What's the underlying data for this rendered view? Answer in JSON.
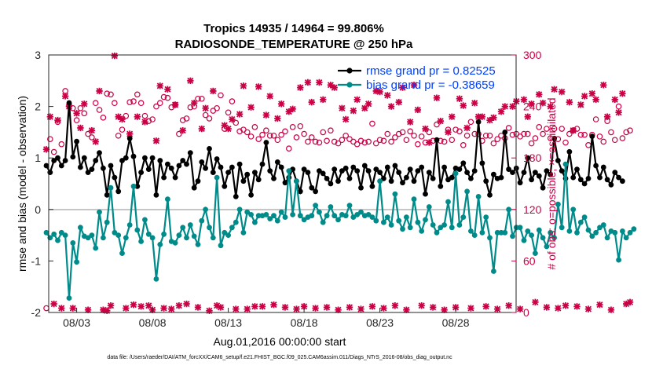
{
  "chart_data": {
    "type": "line",
    "title": "Tropics 14935 / 14964 = 99.806%",
    "subtitle": "RADIOSONDE_TEMPERATURE @ 250 hPa",
    "xlabel": "Aug.01,2016 00:00:00 start",
    "ylabel": "rmse and bias (model - observation)",
    "ylabel_right": "# of obs: o=possible; ×=assimilated",
    "footer": "data file: /Users/raeder/DAI/ATM_forcXX/CAM6_setup/f.e21.FHIST_BGC.f09_025.CAM6assim.011/Diags_NTrS_2016-08/obs_diag_output.nc",
    "x_range": [
      1,
      32
    ],
    "ylim": [
      -2,
      3
    ],
    "ylim_right": [
      0,
      300
    ],
    "yticks": [
      "-2",
      "-1",
      "0",
      "1",
      "2",
      "3"
    ],
    "yticks_right": [
      "0",
      "60",
      "120",
      "180",
      "240",
      "300"
    ],
    "xticks": [
      {
        "x": 3,
        "label": "08/03"
      },
      {
        "x": 8,
        "label": "08/08"
      },
      {
        "x": 13,
        "label": "08/13"
      },
      {
        "x": 18,
        "label": "08/18"
      },
      {
        "x": 23,
        "label": "08/23"
      },
      {
        "x": 28,
        "label": "08/28"
      }
    ],
    "x_step": 0.25,
    "series": [
      {
        "name": "rmse",
        "legend": "rmse grand pr = 0.82525",
        "color": "#000000",
        "axis": "left",
        "values": [
          0.85,
          0.72,
          0.95,
          1.0,
          0.85,
          0.95,
          2.07,
          1.02,
          1.32,
          0.82,
          1.0,
          0.72,
          0.78,
          0.95,
          1.1,
          0.8,
          0.28,
          0.85,
          0.62,
          0.35,
          0.95,
          1.0,
          1.38,
          1.03,
          0.45,
          0.72,
          1.0,
          0.78,
          1.0,
          0.28,
          0.95,
          0.62,
          0.88,
          0.8,
          0.62,
          0.85,
          0.95,
          0.88,
          1.1,
          0.42,
          0.55,
          0.92,
          0.8,
          1.18,
          0.72,
          0.98,
          0.82,
          0.45,
          0.72,
          0.82,
          0.25,
          0.88,
          0.55,
          0.68,
          0.28,
          0.72,
          0.58,
          0.88,
          1.3,
          0.75,
          0.6,
          0.92,
          0.82,
          0.52,
          0.62,
          0.78,
          0.55,
          0.35,
          0.78,
          0.72,
          0.42,
          0.35,
          0.75,
          0.7,
          0.6,
          0.5,
          0.78,
          0.55,
          0.75,
          0.8,
          0.6,
          0.82,
          0.75,
          0.42,
          0.85,
          0.75,
          0.45,
          0.78,
          0.72,
          0.6,
          0.82,
          0.55,
          0.85,
          0.72,
          0.52,
          0.62,
          0.78,
          0.55,
          0.75,
          0.82,
          0.3,
          0.72,
          0.6,
          1.35,
          0.45,
          0.82,
          0.58,
          0.62,
          0.8,
          0.78,
          0.9,
          0.72,
          0.6,
          0.75,
          1.7,
          0.9,
          0.55,
          0.28,
          0.68,
          0.6,
          0.62,
          1.5,
          0.78,
          0.72,
          0.8,
          0.52,
          0.72,
          1.0,
          0.58,
          0.72,
          0.65,
          0.42,
          0.75,
          0.68,
          1.38,
          0.95,
          0.75,
          0.6,
          1.12,
          0.62,
          0.78,
          0.58,
          0.5,
          0.6,
          1.42,
          0.85,
          0.62,
          0.82,
          0.58,
          0.48,
          0.72,
          0.62,
          0.55
        ]
      },
      {
        "name": "bias",
        "legend": "bias grand pr = -0.38659",
        "color": "#008b8b",
        "axis": "left",
        "values": [
          -0.45,
          -0.55,
          -0.48,
          -0.6,
          -0.45,
          -0.5,
          -1.72,
          -0.65,
          -1.02,
          -0.35,
          -0.52,
          -0.55,
          -0.5,
          -0.75,
          -0.05,
          -0.55,
          -0.25,
          0.42,
          -0.45,
          -0.5,
          -0.85,
          -0.55,
          -0.3,
          0.45,
          -0.4,
          -0.62,
          -0.2,
          -0.48,
          -0.55,
          -1.35,
          -0.68,
          -0.48,
          0.2,
          -0.62,
          -0.65,
          -0.5,
          -0.35,
          -0.55,
          -0.3,
          -0.52,
          -0.68,
          -0.22,
          0.0,
          -0.35,
          -0.55,
          0.62,
          -0.7,
          -0.45,
          -0.5,
          -0.35,
          -0.25,
          0.0,
          -0.45,
          -0.05,
          -0.1,
          -0.25,
          -0.12,
          -0.12,
          -0.1,
          -0.18,
          -0.12,
          -0.22,
          -0.05,
          -0.15,
          0.75,
          -0.1,
          0.55,
          -0.12,
          -0.2,
          -0.15,
          -0.12,
          0.08,
          -0.05,
          -0.25,
          -0.12,
          0.05,
          -0.12,
          -0.2,
          -0.1,
          -0.12,
          0.08,
          -0.15,
          -0.1,
          -0.05,
          -0.12,
          -0.1,
          -0.15,
          -0.22,
          0.55,
          -0.25,
          -0.15,
          -0.3,
          0.3,
          -0.22,
          -0.38,
          -0.15,
          -0.35,
          0.2,
          -0.25,
          -0.42,
          -0.2,
          0.05,
          -0.3,
          -0.45,
          -0.35,
          -0.3,
          0.15,
          -0.35,
          0.7,
          -0.3,
          -0.15,
          0.35,
          -0.42,
          -0.5,
          0.25,
          -0.45,
          -0.15,
          -0.55,
          -1.2,
          -0.45,
          -0.45,
          -0.45,
          0.0,
          -0.52,
          -0.35,
          -0.35,
          -0.6,
          -0.42,
          -0.5,
          -0.85,
          -0.4,
          -0.55,
          -0.72,
          -0.45,
          -0.55,
          0.1,
          -0.35,
          0.88,
          -0.42,
          0.0,
          -0.45,
          -0.25,
          -0.15,
          -0.4,
          -0.52,
          -0.45,
          -0.35,
          -0.3,
          -0.55,
          -0.42,
          -0.45,
          -0.98,
          -0.42,
          -0.55,
          -0.45,
          -0.38
        ]
      },
      {
        "name": "possible",
        "legend": "",
        "color": "#cc0044",
        "axis": "right",
        "marker": "o",
        "values": [
          5,
          202,
          187,
          222,
          196,
          258,
          241,
          238,
          224,
          238,
          232,
          208,
          204,
          244,
          236,
          227,
          255,
          254,
          244,
          206,
          213,
          229,
          245,
          246,
          254,
          244,
          229,
          223,
          225,
          240,
          244,
          251,
          250,
          239,
          242,
          208,
          224,
          226,
          239,
          240,
          249,
          249,
          230,
          226,
          235,
          238,
          253,
          214,
          233,
          246,
          221,
          211,
          213,
          210,
          205,
          216,
          202,
          207,
          212,
          206,
          206,
          201,
          207,
          211,
          191,
          216,
          204,
          217,
          208,
          199,
          204,
          199,
          198,
          210,
          200,
          212,
          199,
          197,
          201,
          206,
          202,
          199,
          196,
          200,
          198,
          199,
          220,
          197,
          201,
          200,
          208,
          199,
          204,
          208,
          210,
          201,
          211,
          206,
          196,
          205,
          198,
          210,
          200,
          219,
          200,
          199,
          213,
          201,
          213,
          211,
          195,
          206,
          222,
          208,
          208,
          200,
          206,
          206,
          197,
          202,
          206,
          203,
          215,
          207,
          208,
          205,
          208,
          208,
          197,
          203,
          216,
          208,
          214,
          203,
          214,
          202,
          214,
          198,
          208,
          212,
          214,
          207,
          207,
          195,
          207,
          225,
          205,
          199,
          223,
          210,
          201,
          240,
          203,
          210,
          212
        ]
      },
      {
        "name": "assimilated",
        "legend": "",
        "color": "#cc0044",
        "axis": "right",
        "marker": "x",
        "values": [
          190,
          228,
          10,
          224,
          5,
          252,
          240,
          5,
          232,
          215,
          243,
          3,
          212,
          199,
          258,
          3,
          2,
          8,
          299,
          228,
          225,
          5,
          208,
          9,
          228,
          7,
          222,
          8,
          3,
          200,
          264,
          5,
          260,
          4,
          242,
          8,
          212,
          10,
          270,
          244,
          6,
          214,
          238,
          2,
          258,
          8,
          6,
          218,
          214,
          225,
          4,
          231,
          264,
          4,
          239,
          7,
          263,
          7,
          230,
          252,
          9,
          226,
          243,
          6,
          234,
          237,
          4,
          262,
          7,
          268,
          245,
          5,
          268,
          248,
          6,
          265,
          262,
          3,
          238,
          225,
          6,
          235,
          248,
          4,
          238,
          243,
          7,
          258,
          257,
          5,
          253,
          240,
          8,
          245,
          262,
          3,
          222,
          265,
          236,
          8,
          214,
          198,
          6,
          250,
          223,
          3,
          210,
          228,
          6,
          249,
          241,
          215,
          5,
          244,
          228,
          228,
          7,
          224,
          227,
          4,
          234,
          240,
          8,
          240,
          246,
          4,
          248,
          228,
          243,
          12,
          254,
          244,
          6,
          240,
          260,
          5,
          257,
          8,
          245,
          212,
          7,
          242,
          252,
          4,
          255,
          248,
          9,
          265,
          228,
          3,
          248,
          233,
          255,
          10,
          12
        ]
      }
    ]
  }
}
